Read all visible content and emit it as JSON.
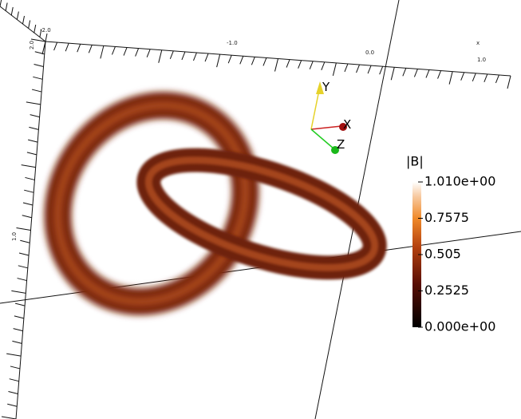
{
  "axis_labels": {
    "x_title": "x",
    "x_ticks": [
      "-2.0",
      "-1.0",
      "0.0",
      "1.0"
    ],
    "corner": "2.0",
    "y_tick": "1.0"
  },
  "orientation_axes": {
    "x": "X",
    "y": "Y",
    "z": "Z"
  },
  "colorbar": {
    "title": "|B|",
    "range": [
      0,
      1.01
    ],
    "ticks": [
      {
        "value": 1.01,
        "label": "1.010e+00"
      },
      {
        "value": 0.7575,
        "label": "0.7575"
      },
      {
        "value": 0.505,
        "label": "0.505"
      },
      {
        "value": 0.2525,
        "label": "0.2525"
      },
      {
        "value": 0,
        "label": "0.000e+00"
      }
    ]
  }
}
